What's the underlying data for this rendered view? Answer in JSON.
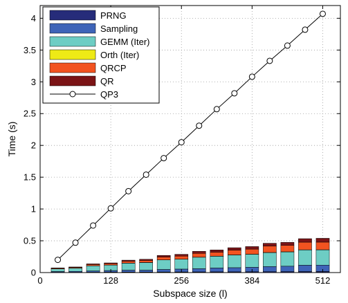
{
  "chart_data": {
    "type": "bar",
    "stacked": true,
    "xlabel": "Subspace size (l)",
    "ylabel": "Time (s)",
    "xlim": [
      0,
      544
    ],
    "ylim": [
      0,
      4.2
    ],
    "xticks": [
      0,
      128,
      256,
      384,
      512
    ],
    "yticks": [
      0,
      0.5,
      1,
      1.5,
      2,
      2.5,
      3,
      3.5,
      4
    ],
    "grid": "dotted",
    "legend_position": "top-left",
    "x": [
      32,
      64,
      96,
      128,
      160,
      192,
      224,
      256,
      288,
      320,
      352,
      384,
      416,
      448,
      480,
      512
    ],
    "series": [
      {
        "name": "PRNG",
        "color": "#262c7a",
        "values": [
          0.005,
          0.005,
          0.006,
          0.007,
          0.008,
          0.008,
          0.009,
          0.01,
          0.011,
          0.012,
          0.012,
          0.013,
          0.014,
          0.015,
          0.016,
          0.017
        ]
      },
      {
        "name": "Sampling",
        "color": "#3e64b8",
        "values": [
          0.012,
          0.014,
          0.02,
          0.025,
          0.03,
          0.03,
          0.04,
          0.045,
          0.05,
          0.06,
          0.065,
          0.07,
          0.08,
          0.085,
          0.1,
          0.1
        ]
      },
      {
        "name": "GEMM (Iter)",
        "color": "#6dcdc4",
        "values": [
          0.04,
          0.05,
          0.08,
          0.085,
          0.11,
          0.12,
          0.15,
          0.155,
          0.18,
          0.185,
          0.2,
          0.205,
          0.22,
          0.225,
          0.24,
          0.24
        ]
      },
      {
        "name": "Orth (Iter)",
        "color": "#eeea16",
        "values": [
          0.001,
          0.001,
          0.001,
          0.001,
          0.001,
          0.001,
          0.001,
          0.001,
          0.001,
          0.001,
          0.001,
          0.001,
          0.002,
          0.002,
          0.002,
          0.002
        ]
      },
      {
        "name": "QRCP",
        "color": "#f25320",
        "values": [
          0.01,
          0.012,
          0.02,
          0.022,
          0.03,
          0.032,
          0.045,
          0.048,
          0.06,
          0.063,
          0.075,
          0.08,
          0.1,
          0.1,
          0.12,
          0.12
        ]
      },
      {
        "name": "QR",
        "color": "#7b1416",
        "values": [
          0.005,
          0.006,
          0.01,
          0.012,
          0.016,
          0.018,
          0.025,
          0.028,
          0.032,
          0.035,
          0.038,
          0.04,
          0.045,
          0.048,
          0.055,
          0.06
        ]
      }
    ],
    "line_series": {
      "name": "QP3",
      "color": "#000000",
      "marker": "circle",
      "x": [
        32,
        64,
        96,
        128,
        160,
        192,
        224,
        256,
        288,
        320,
        352,
        384,
        416,
        448,
        480,
        512
      ],
      "values": [
        0.2,
        0.47,
        0.74,
        1.01,
        1.28,
        1.54,
        1.8,
        2.05,
        2.31,
        2.57,
        2.82,
        3.08,
        3.33,
        3.57,
        3.82,
        4.07
      ]
    }
  }
}
